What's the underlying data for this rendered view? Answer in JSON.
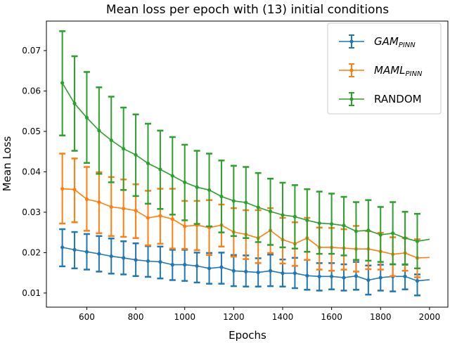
{
  "chart_data": {
    "type": "line",
    "title": "Mean loss per epoch with (13) initial conditions",
    "xlabel": "Epochs",
    "ylabel": "Mean Loss",
    "xlim": [
      435,
      2075
    ],
    "ylim": [
      0.0065,
      0.0773
    ],
    "xticks": [
      600,
      800,
      1000,
      1200,
      1400,
      1600,
      1800,
      2000
    ],
    "xtick_labels": [
      "600",
      "800",
      "1000",
      "1200",
      "1400",
      "1600",
      "1800",
      "2000"
    ],
    "yticks": [
      0.01,
      0.02,
      0.03,
      0.04,
      0.05,
      0.06,
      0.07
    ],
    "ytick_labels": [
      "0.01",
      "0.02",
      "0.03",
      "0.04",
      "0.05",
      "0.06",
      "0.07"
    ],
    "grid": false,
    "legend_position": "top-right",
    "errorbar_epochs": [
      500,
      550,
      600,
      650,
      700,
      750,
      800,
      850,
      900,
      950,
      1000,
      1050,
      1100,
      1150,
      1200,
      1250,
      1300,
      1350,
      1400,
      1450,
      1500,
      1550,
      1600,
      1650,
      1700,
      1750,
      1800,
      1850,
      1900,
      1950
    ],
    "series": [
      {
        "name": "GAM",
        "name_sub": "PINN",
        "italic": true,
        "color": "#1f77b4",
        "mean": [
          0.0213,
          0.0207,
          0.0202,
          0.0197,
          0.0191,
          0.0187,
          0.0182,
          0.0179,
          0.0177,
          0.017,
          0.017,
          0.0167,
          0.0161,
          0.0164,
          0.0155,
          0.0153,
          0.0151,
          0.0155,
          0.0149,
          0.0149,
          0.0143,
          0.0141,
          0.0141,
          0.0138,
          0.0142,
          0.0132,
          0.0138,
          0.0141,
          0.0141,
          0.013
        ],
        "upper": [
          0.0258,
          0.0251,
          0.0246,
          0.0241,
          0.0235,
          0.0228,
          0.0223,
          0.0216,
          0.0215,
          0.0207,
          0.0207,
          0.02,
          0.0199,
          0.02,
          0.0194,
          0.0193,
          0.0186,
          0.0195,
          0.0183,
          0.0187,
          0.0182,
          0.0174,
          0.0174,
          0.0171,
          0.0177,
          0.0168,
          0.017,
          0.0171,
          0.017,
          0.0146
        ],
        "lower": [
          0.0166,
          0.0161,
          0.0158,
          0.0153,
          0.0148,
          0.0146,
          0.0142,
          0.014,
          0.0136,
          0.0132,
          0.013,
          0.0126,
          0.0123,
          0.0123,
          0.0117,
          0.0116,
          0.0116,
          0.0117,
          0.0116,
          0.0112,
          0.0108,
          0.0106,
          0.0109,
          0.0106,
          0.0108,
          0.0096,
          0.0106,
          0.0104,
          0.0109,
          0.0094
        ],
        "end_epoch": 2000,
        "end_value": 0.0133
      },
      {
        "name": "MAML",
        "name_sub": "PINN",
        "italic": true,
        "color": "#ff7f0e",
        "mean": [
          0.0358,
          0.0356,
          0.0332,
          0.0325,
          0.0313,
          0.0309,
          0.0304,
          0.0286,
          0.0291,
          0.0283,
          0.0265,
          0.0268,
          0.0262,
          0.0268,
          0.0251,
          0.0245,
          0.0236,
          0.0255,
          0.0232,
          0.0222,
          0.0236,
          0.0213,
          0.0213,
          0.0211,
          0.0209,
          0.0209,
          0.0203,
          0.0196,
          0.0199,
          0.0187
        ],
        "upper": [
          0.0445,
          0.0433,
          0.0412,
          0.0399,
          0.0387,
          0.0381,
          0.0369,
          0.0353,
          0.0358,
          0.0358,
          0.0328,
          0.0328,
          0.033,
          0.0319,
          0.031,
          0.0305,
          0.0305,
          0.031,
          0.0286,
          0.0275,
          0.0286,
          0.0262,
          0.0261,
          0.0258,
          0.0266,
          0.0253,
          0.0249,
          0.0238,
          0.0236,
          0.0233
        ],
        "lower": [
          0.0272,
          0.0275,
          0.0254,
          0.0248,
          0.0241,
          0.0239,
          0.0236,
          0.0218,
          0.0222,
          0.021,
          0.0209,
          0.0206,
          0.0194,
          0.0215,
          0.019,
          0.0184,
          0.0174,
          0.0199,
          0.0173,
          0.0167,
          0.0182,
          0.0158,
          0.0155,
          0.0158,
          0.0153,
          0.0159,
          0.0158,
          0.0142,
          0.0155,
          0.0139
        ],
        "end_epoch": 2000,
        "end_value": 0.0188
      },
      {
        "name": "RANDOM",
        "name_sub": "",
        "italic": false,
        "color": "#2ca02c",
        "mean": [
          0.062,
          0.0569,
          0.0534,
          0.0502,
          0.0478,
          0.0457,
          0.0442,
          0.0421,
          0.0406,
          0.039,
          0.0374,
          0.0362,
          0.0355,
          0.0339,
          0.0328,
          0.0324,
          0.0312,
          0.0302,
          0.0293,
          0.0289,
          0.028,
          0.0273,
          0.0271,
          0.0267,
          0.0253,
          0.0255,
          0.0244,
          0.0248,
          0.0236,
          0.0228
        ],
        "upper": [
          0.0748,
          0.0686,
          0.0647,
          0.0609,
          0.0586,
          0.0559,
          0.0542,
          0.0519,
          0.0502,
          0.0486,
          0.0467,
          0.0452,
          0.0445,
          0.0428,
          0.0415,
          0.0412,
          0.0397,
          0.0383,
          0.0373,
          0.0367,
          0.0357,
          0.0351,
          0.0346,
          0.0338,
          0.0325,
          0.033,
          0.0313,
          0.0325,
          0.0301,
          0.0296
        ],
        "lower": [
          0.049,
          0.0452,
          0.0422,
          0.0395,
          0.0374,
          0.0355,
          0.034,
          0.0321,
          0.0308,
          0.0294,
          0.028,
          0.0271,
          0.0265,
          0.025,
          0.0241,
          0.0236,
          0.0226,
          0.0219,
          0.0213,
          0.021,
          0.0202,
          0.0197,
          0.0197,
          0.0193,
          0.0182,
          0.018,
          0.0177,
          0.0171,
          0.0171,
          0.0161
        ],
        "end_epoch": 2000,
        "end_value": 0.0233
      }
    ]
  }
}
